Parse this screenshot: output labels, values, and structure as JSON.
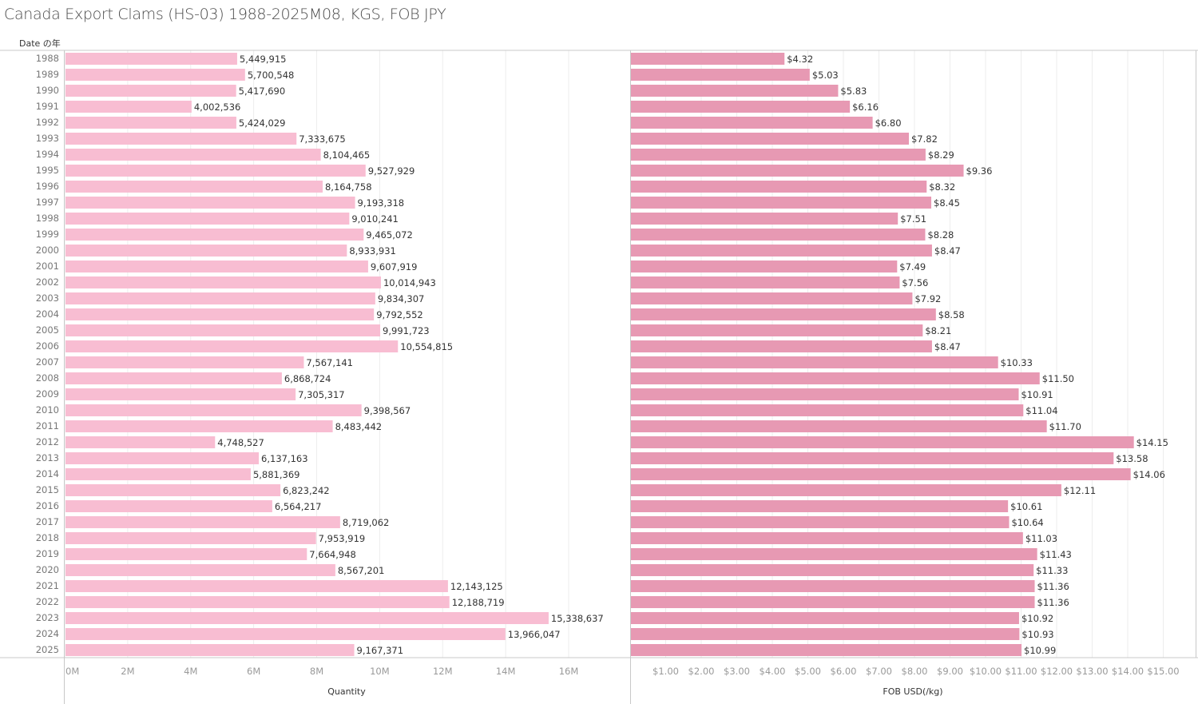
{
  "title": "Canada Export Clams (HS-03) 1988-2025M08, KGS, FOB JPY",
  "row_header": "Date の年",
  "chart_data": [
    {
      "type": "bar",
      "orientation": "horizontal",
      "title": "Canada Export Clams (HS-03) 1988-2025M08, KGS, FOB JPY",
      "xlabel": "Quantity",
      "ylabel": "Date の年",
      "color": "#f8bdd2",
      "xlim": [
        0,
        17500000
      ],
      "ticks": [
        0,
        2000000,
        4000000,
        6000000,
        8000000,
        10000000,
        12000000,
        14000000,
        16000000
      ],
      "tick_labels": [
        "0M",
        "2M",
        "4M",
        "6M",
        "8M",
        "10M",
        "12M",
        "14M",
        "16M"
      ],
      "grid": true,
      "categories": [
        "1988",
        "1989",
        "1990",
        "1991",
        "1992",
        "1993",
        "1994",
        "1995",
        "1996",
        "1997",
        "1998",
        "1999",
        "2000",
        "2001",
        "2002",
        "2003",
        "2004",
        "2005",
        "2006",
        "2007",
        "2008",
        "2009",
        "2010",
        "2011",
        "2012",
        "2013",
        "2014",
        "2015",
        "2016",
        "2017",
        "2018",
        "2019",
        "2020",
        "2021",
        "2022",
        "2023",
        "2024",
        "2025"
      ],
      "values": [
        5449915,
        5700548,
        5417690,
        4002536,
        5424029,
        7333675,
        8104465,
        9527929,
        8164758,
        9193318,
        9010241,
        9465072,
        8933931,
        9607919,
        10014943,
        9834307,
        9792552,
        9991723,
        10554815,
        7567141,
        6868724,
        7305317,
        9398567,
        8483442,
        4748527,
        6137163,
        5881369,
        6823242,
        6564217,
        8719062,
        7953919,
        7664948,
        8567201,
        12143125,
        12188719,
        15338637,
        13966047,
        9167371
      ],
      "labels": [
        "5,449,915",
        "5,700,548",
        "5,417,690",
        "4,002,536",
        "5,424,029",
        "7,333,675",
        "8,104,465",
        "9,527,929",
        "8,164,758",
        "9,193,318",
        "9,010,241",
        "9,465,072",
        "8,933,931",
        "9,607,919",
        "10,014,943",
        "9,834,307",
        "9,792,552",
        "9,991,723",
        "10,554,815",
        "7,567,141",
        "6,868,724",
        "7,305,317",
        "9,398,567",
        "8,483,442",
        "4,748,527",
        "6,137,163",
        "5,881,369",
        "6,823,242",
        "6,564,217",
        "8,719,062",
        "7,953,919",
        "7,664,948",
        "8,567,201",
        "12,143,125",
        "12,188,719",
        "15,338,637",
        "13,966,047",
        "9,167,371"
      ]
    },
    {
      "type": "bar",
      "orientation": "horizontal",
      "xlabel": "FOB USD(/kg)",
      "color": "#e799b3",
      "xlim": [
        0,
        15.75
      ],
      "ticks": [
        1,
        2,
        3,
        4,
        5,
        6,
        7,
        8,
        9,
        10,
        11,
        12,
        13,
        14,
        15
      ],
      "tick_labels": [
        "$1.00",
        "$2.00",
        "$3.00",
        "$4.00",
        "$5.00",
        "$6.00",
        "$7.00",
        "$8.00",
        "$9.00",
        "$10.00",
        "$11.00",
        "$12.00",
        "$13.00",
        "$14.00",
        "$15.00"
      ],
      "grid": true,
      "categories": [
        "1988",
        "1989",
        "1990",
        "1991",
        "1992",
        "1993",
        "1994",
        "1995",
        "1996",
        "1997",
        "1998",
        "1999",
        "2000",
        "2001",
        "2002",
        "2003",
        "2004",
        "2005",
        "2006",
        "2007",
        "2008",
        "2009",
        "2010",
        "2011",
        "2012",
        "2013",
        "2014",
        "2015",
        "2016",
        "2017",
        "2018",
        "2019",
        "2020",
        "2021",
        "2022",
        "2023",
        "2024",
        "2025"
      ],
      "values": [
        4.32,
        5.03,
        5.83,
        6.16,
        6.8,
        7.82,
        8.29,
        9.36,
        8.32,
        8.45,
        7.51,
        8.28,
        8.47,
        7.49,
        7.56,
        7.92,
        8.58,
        8.21,
        8.47,
        10.33,
        11.5,
        10.91,
        11.04,
        11.7,
        14.15,
        13.58,
        14.06,
        12.11,
        10.61,
        10.64,
        11.03,
        11.43,
        11.33,
        11.36,
        11.36,
        10.92,
        10.93,
        10.99
      ],
      "labels": [
        "$4.32",
        "$5.03",
        "$5.83",
        "$6.16",
        "$6.80",
        "$7.82",
        "$8.29",
        "$9.36",
        "$8.32",
        "$8.45",
        "$7.51",
        "$8.28",
        "$8.47",
        "$7.49",
        "$7.56",
        "$7.92",
        "$8.58",
        "$8.21",
        "$8.47",
        "$10.33",
        "$11.50",
        "$10.91",
        "$11.04",
        "$11.70",
        "$14.15",
        "$13.58",
        "$14.06",
        "$12.11",
        "$10.61",
        "$10.64",
        "$11.03",
        "$11.43",
        "$11.33",
        "$11.36",
        "$11.36",
        "$10.92",
        "$10.93",
        "$10.99"
      ]
    }
  ]
}
